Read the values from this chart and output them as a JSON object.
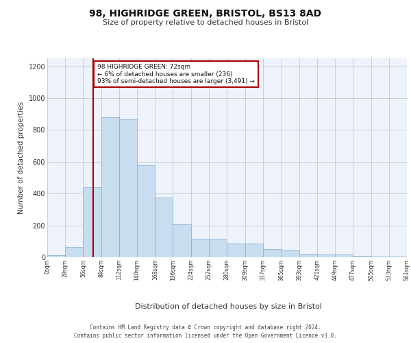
{
  "title1": "98, HIGHRIDGE GREEN, BRISTOL, BS13 8AD",
  "title2": "Size of property relative to detached houses in Bristol",
  "xlabel": "Distribution of detached houses by size in Bristol",
  "ylabel": "Number of detached properties",
  "bar_color": "#c9ddf0",
  "bar_edge_color": "#8ab4d8",
  "grid_color": "#c0c8d8",
  "background_color": "#eef2fa",
  "property_line_x": 72,
  "annotation_text": "98 HIGHRIDGE GREEN: 72sqm\n← 6% of detached houses are smaller (236)\n93% of semi-detached houses are larger (3,491) →",
  "annotation_box_color": "#ffffff",
  "annotation_border_color": "#aa0000",
  "footer1": "Contains HM Land Registry data © Crown copyright and database right 2024.",
  "footer2": "Contains public sector information licensed under the Open Government Licence v3.0.",
  "bin_edges": [
    0,
    28,
    56,
    84,
    112,
    140,
    168,
    196,
    224,
    252,
    280,
    309,
    337,
    365,
    393,
    421,
    449,
    477,
    505,
    533,
    561
  ],
  "bar_heights": [
    12,
    65,
    440,
    880,
    865,
    578,
    375,
    205,
    118,
    118,
    85,
    85,
    50,
    42,
    22,
    18,
    18,
    10,
    5,
    5
  ],
  "xlim": [
    0,
    561
  ],
  "ylim": [
    0,
    1250
  ],
  "yticks": [
    0,
    200,
    400,
    600,
    800,
    1000,
    1200
  ]
}
